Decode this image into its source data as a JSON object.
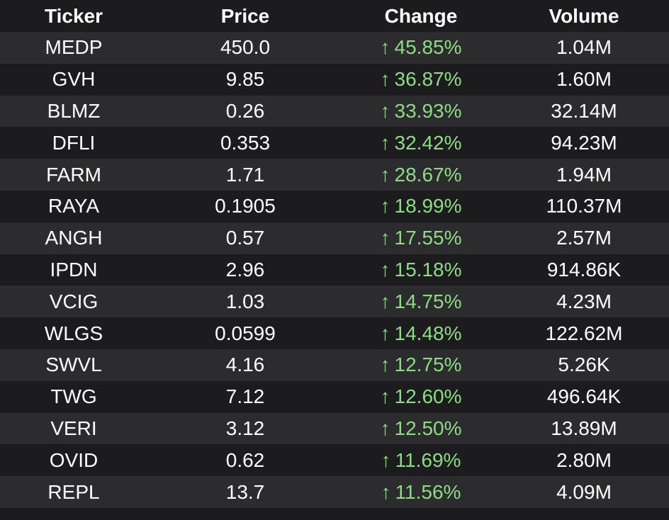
{
  "colors": {
    "background": "#1c1c1e",
    "row_dark": "#1c1c1e",
    "row_light": "#2c2c2e",
    "text": "#ffffff",
    "positive": "#8ddc84"
  },
  "table": {
    "headers": [
      "Ticker",
      "Price",
      "Change",
      "Volume"
    ],
    "rows": [
      {
        "ticker": "MEDP",
        "price": "450.0",
        "arrow": "↑",
        "change": "45.85%",
        "volume": "1.04M"
      },
      {
        "ticker": "GVH",
        "price": "9.85",
        "arrow": "↑",
        "change": "36.87%",
        "volume": "1.60M"
      },
      {
        "ticker": "BLMZ",
        "price": "0.26",
        "arrow": "↑",
        "change": "33.93%",
        "volume": "32.14M"
      },
      {
        "ticker": "DFLI",
        "price": "0.353",
        "arrow": "↑",
        "change": "32.42%",
        "volume": "94.23M"
      },
      {
        "ticker": "FARM",
        "price": "1.71",
        "arrow": "↑",
        "change": "28.67%",
        "volume": "1.94M"
      },
      {
        "ticker": "RAYA",
        "price": "0.1905",
        "arrow": "↑",
        "change": "18.99%",
        "volume": "110.37M"
      },
      {
        "ticker": "ANGH",
        "price": "0.57",
        "arrow": "↑",
        "change": "17.55%",
        "volume": "2.57M"
      },
      {
        "ticker": "IPDN",
        "price": "2.96",
        "arrow": "↑",
        "change": "15.18%",
        "volume": "914.86K"
      },
      {
        "ticker": "VCIG",
        "price": "1.03",
        "arrow": "↑",
        "change": "14.75%",
        "volume": "4.23M"
      },
      {
        "ticker": "WLGS",
        "price": "0.0599",
        "arrow": "↑",
        "change": "14.48%",
        "volume": "122.62M"
      },
      {
        "ticker": "SWVL",
        "price": "4.16",
        "arrow": "↑",
        "change": "12.75%",
        "volume": "5.26K"
      },
      {
        "ticker": "TWG",
        "price": "7.12",
        "arrow": "↑",
        "change": "12.60%",
        "volume": "496.64K"
      },
      {
        "ticker": "VERI",
        "price": "3.12",
        "arrow": "↑",
        "change": "12.50%",
        "volume": "13.89M"
      },
      {
        "ticker": "OVID",
        "price": "0.62",
        "arrow": "↑",
        "change": "11.69%",
        "volume": "2.80M"
      },
      {
        "ticker": "REPL",
        "price": "13.7",
        "arrow": "↑",
        "change": "11.56%",
        "volume": "4.09M"
      }
    ]
  }
}
